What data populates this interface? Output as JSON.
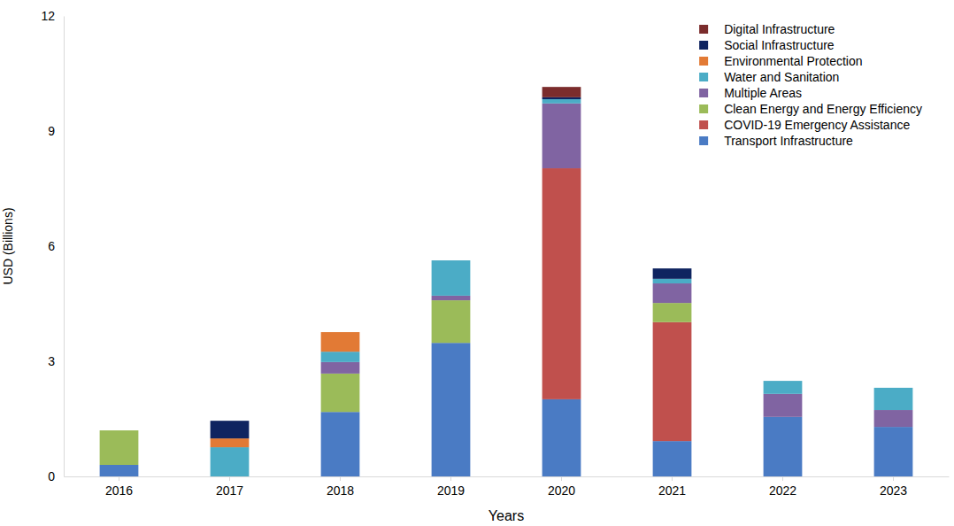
{
  "chart_data": {
    "type": "bar",
    "stacked": true,
    "x_label": "Years",
    "y_label": "USD (Billions)",
    "categories": [
      "2016",
      "2017",
      "2018",
      "2019",
      "2020",
      "2021",
      "2022",
      "2023"
    ],
    "ylim": [
      0,
      12
    ],
    "yticks": [
      0,
      3,
      6,
      9,
      12
    ],
    "grid": false,
    "legend": "top-right",
    "series": [
      {
        "name": "Transport Infrastructure",
        "color": "#4a7bc4",
        "values": [
          0.3,
          0,
          1.68,
          3.48,
          2.01,
          0.92,
          1.55,
          1.29
        ]
      },
      {
        "name": "COVID-19 Emergency Assistance",
        "color": "#c0504d",
        "values": [
          0,
          0,
          0,
          0,
          6.02,
          3.1,
          0,
          0
        ]
      },
      {
        "name": "Clean Energy and Energy Efficiency",
        "color": "#9bbb59",
        "values": [
          0.9,
          0,
          1.0,
          1.11,
          0,
          0.5,
          0,
          0
        ]
      },
      {
        "name": "Multiple Areas",
        "color": "#8064a2",
        "values": [
          0,
          0,
          0.3,
          0.12,
          1.69,
          0.51,
          0.6,
          0.44
        ]
      },
      {
        "name": "Water and Sanitation",
        "color": "#4bacc6",
        "values": [
          0,
          0.76,
          0.27,
          0.92,
          0.11,
          0.12,
          0.34,
          0.58
        ]
      },
      {
        "name": "Environmental Protection",
        "color": "#e27a35",
        "values": [
          0,
          0.23,
          0.51,
          0,
          0,
          0,
          0,
          0
        ]
      },
      {
        "name": "Social Infrastructure",
        "color": "#0f2460",
        "values": [
          0,
          0.46,
          0,
          0,
          0.05,
          0.27,
          0,
          0
        ]
      },
      {
        "name": "Digital Infrastructure",
        "color": "#7b2c2c",
        "values": [
          0,
          0,
          0,
          0,
          0.27,
          0,
          0,
          0
        ]
      }
    ]
  }
}
